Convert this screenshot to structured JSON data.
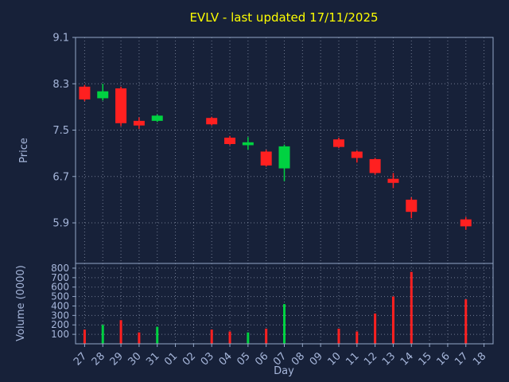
{
  "chart_data": {
    "type": "candlestick",
    "title": "EVLV - last updated 17/11/2025",
    "xlabel": "Day",
    "ylabel_price": "Price",
    "ylabel_volume": "Volume (0000)",
    "categories": [
      "27",
      "28",
      "29",
      "30",
      "31",
      "01",
      "02",
      "03",
      "04",
      "05",
      "06",
      "07",
      "08",
      "09",
      "10",
      "11",
      "12",
      "13",
      "14",
      "15",
      "16",
      "17",
      "18"
    ],
    "price_ticks": [
      9.1,
      8.3,
      7.5,
      6.7,
      5.9
    ],
    "price_range": [
      5.2,
      9.1
    ],
    "volume_ticks": [
      100,
      200,
      300,
      400,
      500,
      600,
      700,
      800
    ],
    "volume_range": [
      0,
      850
    ],
    "colors": {
      "up": "#00d241",
      "down": "#ff2020",
      "background": "#172139",
      "grid": "#c8d2e8",
      "title": "#ffff00",
      "axis_text": "#a6b6da",
      "frame": "#93a7c7"
    },
    "candles": [
      {
        "day": "27",
        "open": 8.25,
        "high": 8.28,
        "low": 8.0,
        "close": 8.03,
        "volume": 150
      },
      {
        "day": "28",
        "open": 8.05,
        "high": 8.3,
        "low": 8.01,
        "close": 8.17,
        "volume": 200
      },
      {
        "day": "29",
        "open": 8.22,
        "high": 8.25,
        "low": 7.57,
        "close": 7.62,
        "volume": 250
      },
      {
        "day": "30",
        "open": 7.66,
        "high": 7.72,
        "low": 7.52,
        "close": 7.58,
        "volume": 120
      },
      {
        "day": "31",
        "open": 7.66,
        "high": 7.77,
        "low": 7.64,
        "close": 7.75,
        "volume": 180
      },
      {
        "day": "03",
        "open": 7.71,
        "high": 7.73,
        "low": 7.58,
        "close": 7.6,
        "volume": 150
      },
      {
        "day": "04",
        "open": 7.37,
        "high": 7.4,
        "low": 7.24,
        "close": 7.26,
        "volume": 130
      },
      {
        "day": "05",
        "open": 7.24,
        "high": 7.38,
        "low": 7.16,
        "close": 7.29,
        "volume": 120
      },
      {
        "day": "06",
        "open": 7.13,
        "high": 7.16,
        "low": 6.87,
        "close": 6.89,
        "volume": 160
      },
      {
        "day": "07",
        "open": 6.84,
        "high": 7.25,
        "low": 6.62,
        "close": 7.22,
        "volume": 420
      },
      {
        "day": "10",
        "open": 7.34,
        "high": 7.37,
        "low": 7.19,
        "close": 7.21,
        "volume": 160
      },
      {
        "day": "11",
        "open": 7.13,
        "high": 7.15,
        "low": 6.94,
        "close": 7.02,
        "volume": 130
      },
      {
        "day": "12",
        "open": 7.0,
        "high": 7.02,
        "low": 6.73,
        "close": 6.76,
        "volume": 320
      },
      {
        "day": "13",
        "open": 6.66,
        "high": 6.76,
        "low": 6.5,
        "close": 6.59,
        "volume": 500
      },
      {
        "day": "14",
        "open": 6.3,
        "high": 6.34,
        "low": 5.98,
        "close": 6.09,
        "volume": 760
      },
      {
        "day": "17",
        "open": 5.96,
        "high": 6.0,
        "low": 5.78,
        "close": 5.84,
        "volume": 470
      }
    ]
  }
}
